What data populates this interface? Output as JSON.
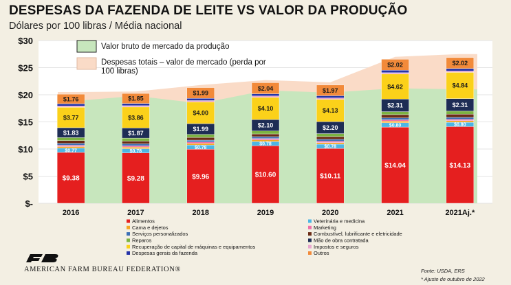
{
  "header": {
    "title": "DESPESAS DA FAZENDA DE LEITE VS VALOR DA PRODUÇÃO",
    "subtitle": "Dólares por 100 libras / Média nacional"
  },
  "footer": {
    "logo_text": "AMERICAN FARM BUREAU FEDERATION®",
    "source": "Fonte: USDA, ERS",
    "note": "* Ajuste de outubro de 2022"
  },
  "chart_data": {
    "type": "bar",
    "stacked": true,
    "categories": [
      "2016",
      "2017",
      "2018",
      "2019",
      "2020",
      "2021",
      "2021Aj.*"
    ],
    "ylim": [
      0,
      30
    ],
    "yticks": [
      0,
      5,
      10,
      15,
      20,
      25,
      30
    ],
    "ytick_labels": [
      "$-",
      "$5",
      "$10",
      "$15",
      "$20",
      "$25",
      "$30"
    ],
    "area_series": [
      {
        "name": "Valor bruto de mercado da produção",
        "color": "#c7e6bd",
        "values": [
          18.8,
          19.8,
          18.4,
          20.8,
          20.4,
          21.2,
          21.0
        ]
      },
      {
        "name": "Despesas totais – valor de mercado (perda por 100 libras)",
        "color": "#fadbc7",
        "values": [
          20.5,
          20.6,
          21.8,
          22.7,
          22.3,
          27.0,
          27.5
        ]
      }
    ],
    "area_legend": [
      {
        "label": "Valor bruto de mercado da produção",
        "color": "#c7e6bd"
      },
      {
        "label_lines": [
          "Despesas totais – valor de mercado (perda por",
          "100 libras)"
        ],
        "color": "#fadbc7"
      }
    ],
    "series": [
      {
        "name": "Alimentos",
        "color": "#e51f1f",
        "values": [
          9.38,
          9.28,
          9.96,
          10.6,
          10.11,
          14.04,
          14.13
        ],
        "labels": [
          "$9.38",
          "$9.28",
          "$9.96",
          "$10.60",
          "$10.11",
          "$14.04",
          "$14.13"
        ]
      },
      {
        "name": "Veterinária e medicina",
        "color": "#4db6e4",
        "values": [
          0.77,
          0.78,
          0.78,
          0.78,
          0.78,
          0.8,
          0.8
        ],
        "labels": [
          "$0.77",
          "$0.78",
          "$0.78",
          "$0.78",
          "$0.78",
          "$0.80",
          "$0.80"
        ]
      },
      {
        "name": "Cama e dejetos",
        "color": "#f5a623",
        "values": [
          0.3,
          0.3,
          0.3,
          0.3,
          0.3,
          0.3,
          0.3
        ]
      },
      {
        "name": "Marketing",
        "color": "#ef6fa8",
        "values": [
          0.25,
          0.25,
          0.25,
          0.25,
          0.25,
          0.25,
          0.25
        ]
      },
      {
        "name": "Serviços personalizados",
        "color": "#3b6fb6",
        "values": [
          0.35,
          0.35,
          0.35,
          0.35,
          0.35,
          0.35,
          0.35
        ]
      },
      {
        "name": "Combustível, lubrificante e eletricidade",
        "color": "#6b2c16",
        "values": [
          0.5,
          0.5,
          0.5,
          0.5,
          0.5,
          0.6,
          0.6
        ]
      },
      {
        "name": "Reparos",
        "color": "#7cb342",
        "values": [
          0.55,
          0.55,
          0.55,
          0.55,
          0.55,
          0.55,
          0.55
        ]
      },
      {
        "name": "Mão de obra contratada",
        "color": "#1e2d55",
        "values": [
          1.83,
          1.87,
          1.99,
          2.1,
          2.2,
          2.31,
          2.31
        ],
        "labels": [
          "$1.83",
          "$1.87",
          "$1.99",
          "$2.10",
          "$2.20",
          "$2.31",
          "$2.31"
        ]
      },
      {
        "name": "Recuperação de capital de máquinas e equipamentos",
        "color": "#fbd11a",
        "values": [
          3.77,
          3.86,
          4.0,
          4.1,
          4.13,
          4.62,
          4.84
        ],
        "labels": [
          "$3.77",
          "$3.86",
          "$4.00",
          "$4.10",
          "$4.13",
          "$4.62",
          "$4.84"
        ]
      },
      {
        "name": "Impostos e seguros",
        "color": "#e9a6cf",
        "values": [
          0.25,
          0.25,
          0.25,
          0.25,
          0.25,
          0.25,
          0.25
        ]
      },
      {
        "name": "Despesas gerais da fazenda",
        "color": "#2533a8",
        "values": [
          0.4,
          0.4,
          0.4,
          0.4,
          0.4,
          0.45,
          0.45
        ]
      },
      {
        "name": "Outros",
        "color": "#f28a3a",
        "values": [
          1.76,
          1.85,
          1.99,
          2.04,
          1.97,
          2.02,
          2.02
        ],
        "labels": [
          "$1.76",
          "$1.85",
          "$1.99",
          "$2.04",
          "$1.97",
          "$2.02",
          "$2.02"
        ]
      }
    ],
    "legend": [
      {
        "label": "Alimentos",
        "color": "#e51f1f"
      },
      {
        "label": "Veterinária e medicina",
        "color": "#4db6e4"
      },
      {
        "label": "Cama e dejetos",
        "color": "#f5a623"
      },
      {
        "label": "Marketing",
        "color": "#ef6fa8"
      },
      {
        "label": "Serviços personalizados",
        "color": "#3b6fb6"
      },
      {
        "label": "Combustível, lubrificante e eletricidade",
        "color": "#6b2c16"
      },
      {
        "label": "Reparos",
        "color": "#7cb342"
      },
      {
        "label": "Mão de obra contratada",
        "color": "#1e2d55"
      },
      {
        "label": "Recuperação de capital de máquinas e equipamentos",
        "color": "#fbd11a"
      },
      {
        "label": "Impostos e seguros",
        "color": "#e9a6cf"
      },
      {
        "label": "Despesas gerais da fazenda",
        "color": "#2533a8"
      },
      {
        "label": "Outros",
        "color": "#f28a3a"
      }
    ],
    "legend_placement": "bottom",
    "grid": true
  }
}
